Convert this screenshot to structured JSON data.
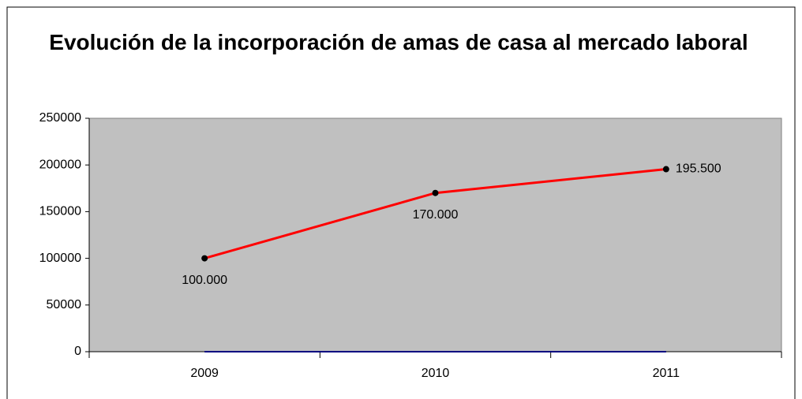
{
  "chart_data": {
    "type": "line",
    "title": "Evolución de la incorporación de amas de casa al mercado laboral",
    "categories": [
      "2009",
      "2010",
      "2011"
    ],
    "series": [
      {
        "color": "#ff0000",
        "values": [
          100000,
          170000,
          195500
        ],
        "value_labels": [
          "100.000",
          "170.000",
          "195.500"
        ]
      },
      {
        "color": "#000080",
        "values": [
          0,
          0,
          0
        ]
      }
    ],
    "ylim": [
      0,
      250000
    ],
    "yticks": [
      0,
      50000,
      100000,
      150000,
      200000,
      250000
    ],
    "plot_background": "#c0c0c0"
  }
}
